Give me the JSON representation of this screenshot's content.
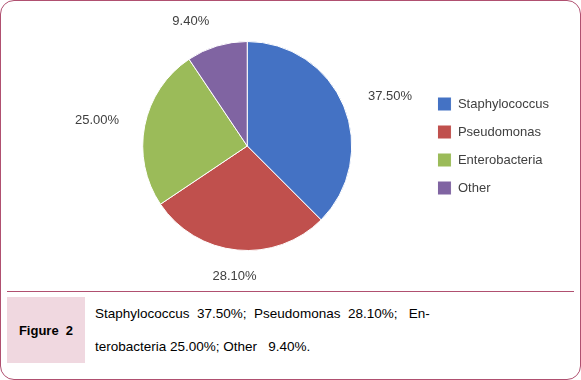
{
  "chart_data": {
    "type": "pie",
    "categories": [
      "Staphylococcus",
      "Pseudomonas",
      "Enterobacteria",
      "Other"
    ],
    "values": [
      37.5,
      28.1,
      25.0,
      9.4
    ],
    "value_labels": [
      "37.50%",
      "28.10%",
      "25.00%",
      "9.40%"
    ],
    "colors": [
      "#4472C4",
      "#C0504D",
      "#9BBB59",
      "#8064A2"
    ],
    "data_labels": true,
    "legend": "right",
    "annotations": [
      "Figure  2",
      "Staphylococcus  37.50%;  Pseudomonas  28.10%;   En-",
      "terobacteria 25.00%; Other   9.40%."
    ]
  }
}
